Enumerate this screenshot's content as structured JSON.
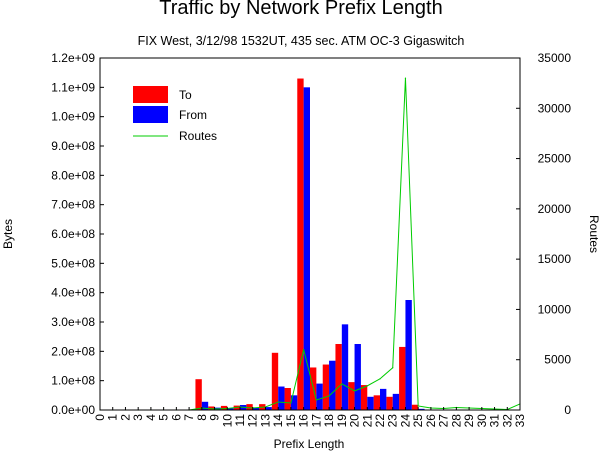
{
  "chart_data": {
    "type": "bar",
    "title": "Traffic by Network Prefix Length",
    "subtitle": "FIX West, 3/12/98 1532UT, 435 sec. ATM OC-3 Gigaswitch",
    "xlabel": "Prefix Length",
    "ylabel": "Bytes",
    "y2label": "Routes",
    "categories": [
      "0",
      "1",
      "2",
      "3",
      "4",
      "5",
      "6",
      "7",
      "8",
      "9",
      "10",
      "11",
      "12",
      "13",
      "14",
      "15",
      "16",
      "17",
      "18",
      "19",
      "20",
      "21",
      "22",
      "23",
      "24",
      "25",
      "26",
      "27",
      "28",
      "29",
      "30",
      "31",
      "32",
      "33"
    ],
    "ylim": [
      0,
      1200000000
    ],
    "y2lim": [
      0,
      35000
    ],
    "yticks": [
      "0.0e+00",
      "1.0e+08",
      "2.0e+08",
      "3.0e+08",
      "4.0e+08",
      "5.0e+08",
      "6.0e+08",
      "7.0e+08",
      "8.0e+08",
      "9.0e+08",
      "1.0e+09",
      "1.1e+09",
      "1.2e+09"
    ],
    "y2ticks": [
      "0",
      "5000",
      "10000",
      "15000",
      "20000",
      "25000",
      "30000",
      "35000"
    ],
    "legend_position": "top-left",
    "grid": false,
    "series": [
      {
        "name": "To",
        "color": "#ff0000",
        "axis": "left",
        "kind": "bar",
        "values": [
          0,
          0,
          0,
          0,
          0,
          0,
          0,
          0,
          105000000,
          12000000,
          14000000,
          15000000,
          20000000,
          20000000,
          195000000,
          75000000,
          1130000000,
          145000000,
          155000000,
          225000000,
          95000000,
          85000000,
          50000000,
          45000000,
          215000000,
          18000000,
          0,
          0,
          0,
          0,
          0,
          0,
          0,
          0
        ]
      },
      {
        "name": "From",
        "color": "#0000ff",
        "axis": "left",
        "kind": "bar",
        "values": [
          0,
          0,
          0,
          0,
          0,
          0,
          0,
          0,
          28000000,
          8000000,
          6000000,
          17000000,
          8000000,
          10000000,
          80000000,
          50000000,
          1100000000,
          90000000,
          168000000,
          292000000,
          225000000,
          45000000,
          72000000,
          55000000,
          375000000,
          4000000,
          0,
          0,
          0,
          0,
          0,
          0,
          0,
          0
        ]
      },
      {
        "name": "Routes",
        "color": "#00cc00",
        "axis": "right",
        "kind": "line",
        "values": [
          0,
          0,
          0,
          0,
          0,
          0,
          0,
          0,
          200,
          100,
          150,
          300,
          200,
          300,
          800,
          700,
          6000,
          1000,
          1400,
          2600,
          1900,
          2400,
          3100,
          4200,
          33000,
          400,
          200,
          150,
          250,
          200,
          150,
          100,
          50,
          600
        ]
      }
    ]
  }
}
